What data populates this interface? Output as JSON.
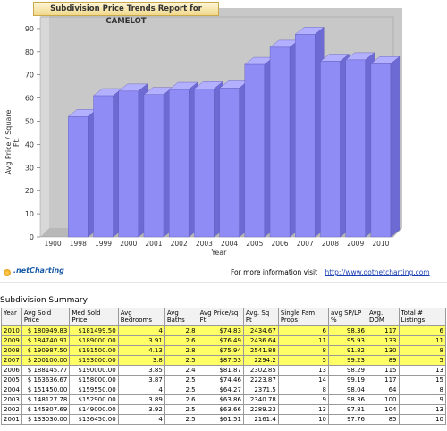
{
  "chart_data": {
    "type": "bar",
    "title": "Subdivision Price Trends Report for CAMELOT",
    "xlabel": "Year",
    "ylabel": "Avg Price / Square Ft.",
    "ylim": [
      0,
      95
    ],
    "yticks": [
      0,
      10,
      20,
      30,
      40,
      50,
      60,
      70,
      80,
      90
    ],
    "categories": [
      "1900",
      "1998",
      "1999",
      "2000",
      "2001",
      "2002",
      "2003",
      "2004",
      "2005",
      "2006",
      "2007",
      "2008",
      "2009",
      "2010"
    ],
    "values": [
      null,
      52,
      61,
      63,
      61.5,
      63.7,
      64,
      64.3,
      74.5,
      81.9,
      87.5,
      75.9,
      76.5,
      74.8
    ],
    "bar_color": "#8f8cf5",
    "bg_color": "#c8c8c8"
  },
  "footer": {
    "logo": ".netCharting",
    "more_info": "For more information visit",
    "link": "http://www.dotnetcharting.com"
  },
  "summary": {
    "title": "Subdivision Summary",
    "headers": [
      "Year",
      "Avg Sold Price",
      "Med Sold Price",
      "Avg Bedrooms",
      "Avg Baths",
      "Avg Price/sq Ft",
      "Avg. Sq Ft",
      "Single Fam Props",
      "avg SP/LP %",
      "Avg. DOM",
      "Total # Listings"
    ],
    "rows": [
      [
        "2010",
        "$ 180949.83",
        "$181499.50",
        "4",
        "2.8",
        "$74.83",
        "2434.67",
        "6",
        "98.36",
        "117",
        "6"
      ],
      [
        "2009",
        "$ 184740.91",
        "$189000.00",
        "3.91",
        "2.6",
        "$76.49",
        "2436.64",
        "11",
        "95.93",
        "133",
        "11"
      ],
      [
        "2008",
        "$ 190987.50",
        "$191500.00",
        "4.13",
        "2.8",
        "$75.94",
        "2541.88",
        "8",
        "91.82",
        "130",
        "8"
      ],
      [
        "2007",
        "$ 200100.00",
        "$193000.00",
        "3.8",
        "2.5",
        "$87.53",
        "2294.2",
        "5",
        "99.23",
        "89",
        "5"
      ],
      [
        "2006",
        "$ 188145.77",
        "$190000.00",
        "3.85",
        "2.4",
        "$81.87",
        "2302.85",
        "13",
        "98.29",
        "115",
        "13"
      ],
      [
        "2005",
        "$ 163636.67",
        "$158000.00",
        "3.87",
        "2.5",
        "$74.46",
        "2223.87",
        "14",
        "99.19",
        "117",
        "15"
      ],
      [
        "2004",
        "$ 151450.00",
        "$159550.00",
        "4",
        "2.5",
        "$64.27",
        "2371.5",
        "8",
        "98.04",
        "64",
        "8"
      ],
      [
        "2003",
        "$ 148127.78",
        "$152900.00",
        "3.89",
        "2.6",
        "$63.86",
        "2340.78",
        "9",
        "98.36",
        "100",
        "9"
      ],
      [
        "2002",
        "$ 145307.69",
        "$149000.00",
        "3.92",
        "2.5",
        "$63.66",
        "2289.23",
        "13",
        "97.81",
        "104",
        "13"
      ],
      [
        "2001",
        "$ 133030.00",
        "$136450.00",
        "4",
        "2.5",
        "$61.51",
        "2161.4",
        "10",
        "97.76",
        "85",
        "10"
      ]
    ],
    "highlight_rows": 4,
    "highlight_color": "#ffff66"
  }
}
